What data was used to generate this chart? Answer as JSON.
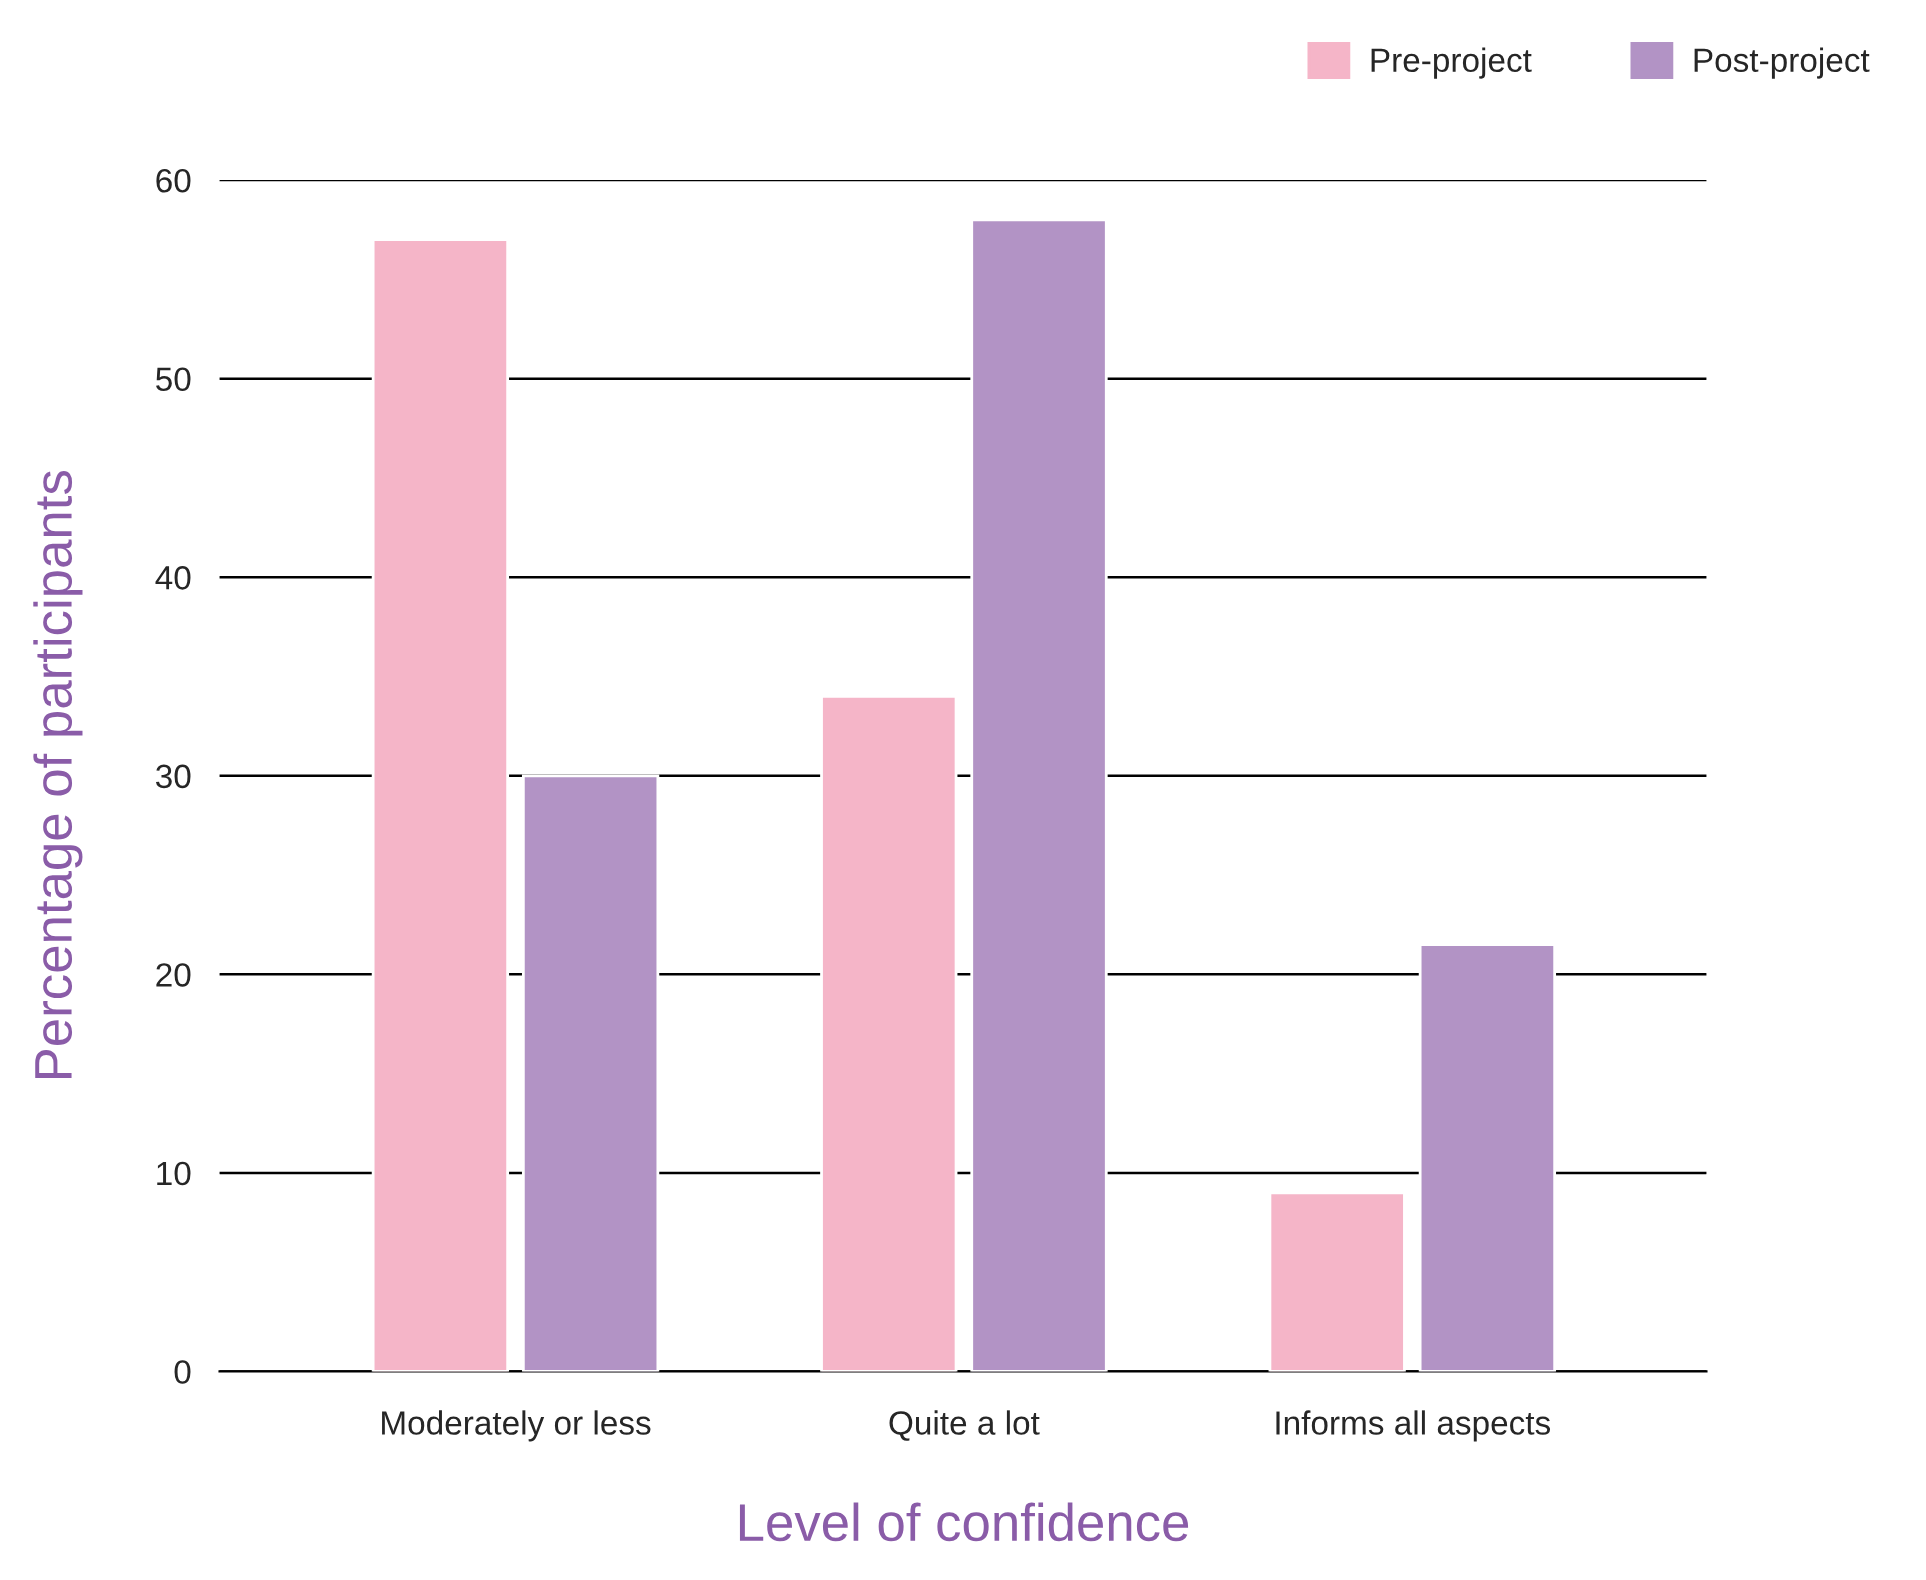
{
  "chart_data": {
    "type": "bar",
    "xlabel": "Level of confidence",
    "ylabel": "Percentage of participants",
    "categories": [
      "Moderately or less",
      "Quite a lot",
      "Informs all aspects"
    ],
    "series": [
      {
        "name": "Pre-project",
        "color": "#f5b5c8",
        "values": [
          57,
          34,
          9
        ]
      },
      {
        "name": "Post-project",
        "color": "#b293c5",
        "values": [
          30,
          58,
          21.5
        ]
      }
    ],
    "ylim": [
      0,
      60
    ],
    "yticks": [
      0,
      10,
      20,
      30,
      40,
      50,
      60
    ],
    "grid": "y",
    "legend": "top right"
  }
}
